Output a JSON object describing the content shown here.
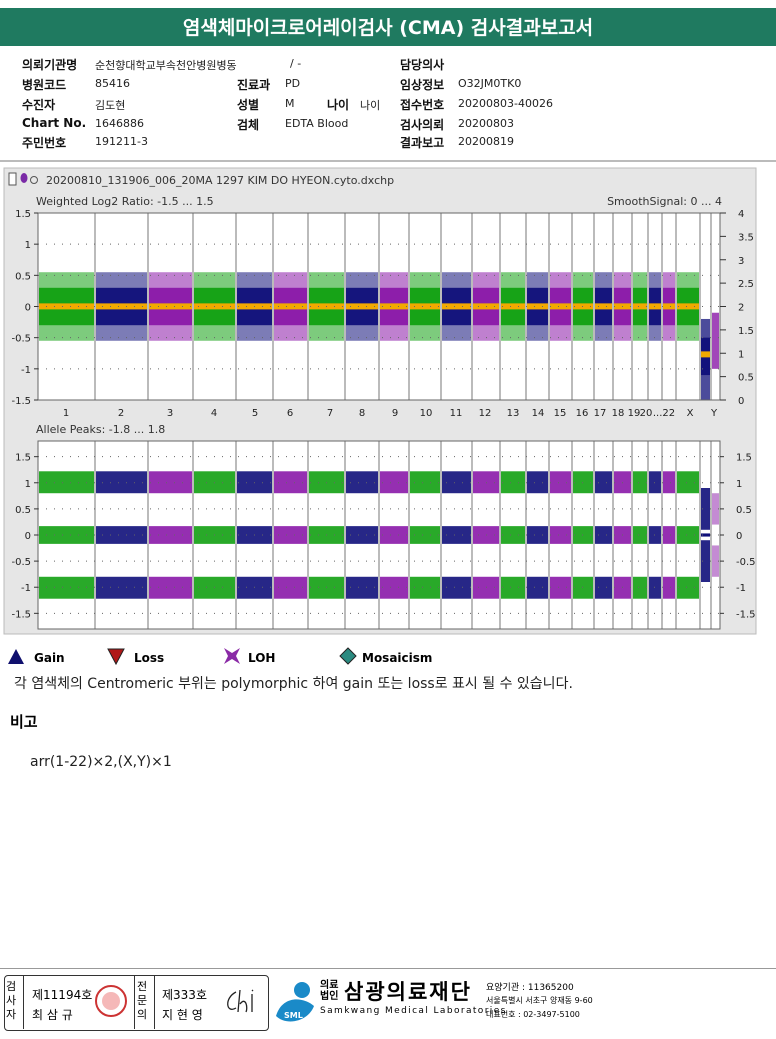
{
  "header": {
    "title": "염색체마이크로어레이검사 (CMA) 검사결과보고서"
  },
  "info": [
    [
      {
        "label": "의뢰기관명",
        "value": "순천향대학교부속천안병원병동"
      },
      {
        "value": "/ -"
      },
      {
        "label": "담당의사"
      }
    ],
    [
      {
        "label": "병원코드",
        "value": "85416"
      },
      {
        "label": "진료과",
        "value": "PD"
      },
      {
        "label": "임상정보",
        "value": "O32JM0TK0"
      }
    ],
    [
      {
        "label": "수진자",
        "value": "김도현"
      },
      {
        "label": "성별",
        "value": "M"
      },
      {
        "label": "나이",
        "value": "나이"
      },
      {
        "label": "접수번호",
        "value": "20200803-40026"
      }
    ],
    [
      {
        "label": "Chart No.",
        "value": "1646886"
      },
      {
        "label": "검체",
        "value": "EDTA Blood"
      },
      {
        "label": "검사의뢰",
        "value": "20200803"
      }
    ],
    [
      {
        "label": "주민번호",
        "value": "191211-3"
      },
      {
        "label": "결과보고",
        "value": "20200819"
      }
    ]
  ],
  "panel": {
    "file": "20200810_131906_006_20MA 1297 KIM DO HYEON.cyto.dxchp",
    "top": {
      "title": "Weighted Log2 Ratio: -1.5 ... 1.5",
      "right_title": "SmoothSignal: 0 ... 4",
      "ylim": [
        -1.5,
        1.5
      ],
      "yticks": [
        1.5,
        1,
        0.5,
        0,
        -0.5,
        -1,
        -1.5
      ],
      "y2lim": [
        0,
        4
      ],
      "y2ticks": [
        4,
        3.5,
        3,
        2.5,
        2,
        1.5,
        1,
        0.5,
        0
      ]
    },
    "bottom": {
      "title": "Allele Peaks: -1.8 ... 1.8",
      "ylim": [
        -1.8,
        1.8
      ],
      "yticks": [
        1.5,
        1,
        0.5,
        0,
        -0.5,
        -1,
        -1.5
      ]
    },
    "chromosomes": [
      "1",
      "2",
      "3",
      "4",
      "5",
      "6",
      "7",
      "8",
      "9",
      "10",
      "11",
      "12",
      "13",
      "14",
      "15",
      "16",
      "17",
      "18",
      "19",
      "20",
      "...22",
      "X",
      "Y"
    ]
  },
  "legend": [
    "Gain",
    "Loss",
    "LOH",
    "Mosaicism"
  ],
  "note": "각 염색체의 Centromeric 부위는 polymorphic 하여 gain 또는 loss로 표시 될 수 있습니다.",
  "remarks": {
    "title": "비고",
    "text": "arr(1-22)×2,(X,Y)×1"
  },
  "footer": {
    "tester_role": "검사자",
    "tester_no": "제11194호",
    "tester_name": "최 삼 규",
    "doctor_role": "전문의",
    "doctor_no": "제333호",
    "doctor_name": "지 현 영",
    "org_type": "의료법인",
    "org_name": "삼광의료재단",
    "org_en": "Samkwang Medical Laboratories",
    "code": "요양기관 : 11365200",
    "address": "서울특별시 서초구 양재동 9-60",
    "phone": "대표번호 : 02-3497-5100"
  }
}
